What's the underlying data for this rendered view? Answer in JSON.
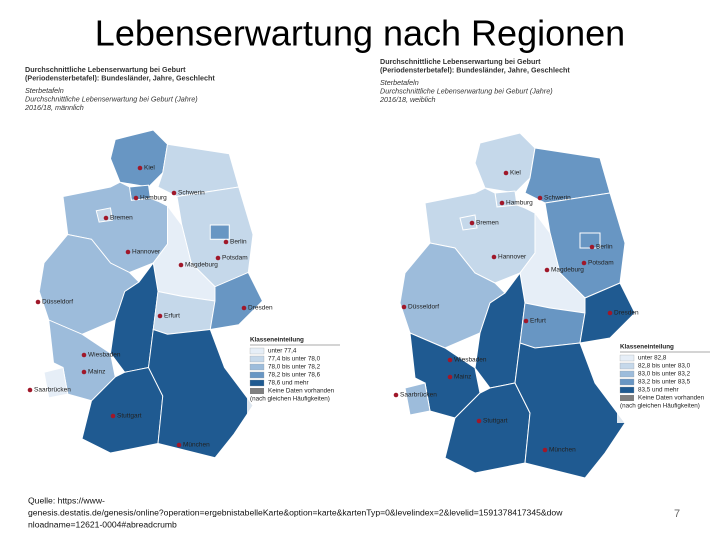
{
  "title": "Lebenserwartung nach Regionen",
  "maps": [
    {
      "heading": [
        "Durchschnittliche Lebenserwartung bei Geburt",
        "(Periodensterbetafel): Bundesländer, Jahre, Geschlecht",
        "Sterbetafeln",
        "Durchschnittliche Lebenserwartung bei Geburt (Jahre)",
        "2016/18, männlich"
      ],
      "cities": [
        "Kiel",
        "Schwerin",
        "Hamburg",
        "Bremen",
        "Hannover",
        "Berlin",
        "Potsdam",
        "Magdeburg",
        "Düsseldorf",
        "Erfurt",
        "Dresden",
        "Wiesbaden",
        "Mainz",
        "Saarbrücken",
        "Stuttgart",
        "München"
      ],
      "legend": {
        "title": "Klasseneinteilung",
        "items": [
          {
            "label": "unter 77,4",
            "color": "#e6eef7"
          },
          {
            "label": "77,4 bis unter 78,0",
            "color": "#c5d8ea"
          },
          {
            "label": "78,0 bis unter 78,2",
            "color": "#9dbcdb"
          },
          {
            "label": "78,2 bis unter 78,6",
            "color": "#6896c3"
          },
          {
            "label": "78,6 und mehr",
            "color": "#1f5a91"
          }
        ],
        "note": [
          "Keine Daten vorhanden",
          "(nach gleichen Häufigkeiten)"
        ],
        "note_color": "#808080"
      }
    },
    {
      "heading": [
        "Durchschnittliche Lebenserwartung bei Geburt",
        "(Periodensterbetafel): Bundesländer, Jahre, Geschlecht",
        "Sterbetafeln",
        "Durchschnittliche Lebenserwartung bei Geburt (Jahre)",
        "2016/18, weiblich"
      ],
      "cities": [
        "Kiel",
        "Schwerin",
        "Hamburg",
        "Bremen",
        "Hannover",
        "Berlin",
        "Potsdam",
        "Magdeburg",
        "Düsseldorf",
        "Erfurt",
        "Dresden",
        "Wiesbaden",
        "Mainz",
        "Saarbrücken",
        "Stuttgart",
        "München"
      ],
      "legend": {
        "title": "Klasseneinteilung",
        "items": [
          {
            "label": "unter 82,8",
            "color": "#e6eef7"
          },
          {
            "label": "82,8 bis unter 83,0",
            "color": "#c5d8ea"
          },
          {
            "label": "83,0 bis unter 83,2",
            "color": "#9dbcdb"
          },
          {
            "label": "83,2 bis unter 83,5",
            "color": "#6896c3"
          },
          {
            "label": "83,5 und mehr",
            "color": "#1f5a91"
          }
        ],
        "note": [
          "Keine Daten vorhanden",
          "(nach gleichen Häufigkeiten)"
        ],
        "note_color": "#808080"
      }
    }
  ],
  "source": [
    "Quelle: https://www-",
    "genesis.destatis.de/genesis/online?operation=ergebnistabelleKarte&option=karte&kartenTyp=0&levelindex=2&levelid=1591378417345&dow",
    "nloadname=12621-0004#abreadcrumb"
  ],
  "page_number": "7"
}
